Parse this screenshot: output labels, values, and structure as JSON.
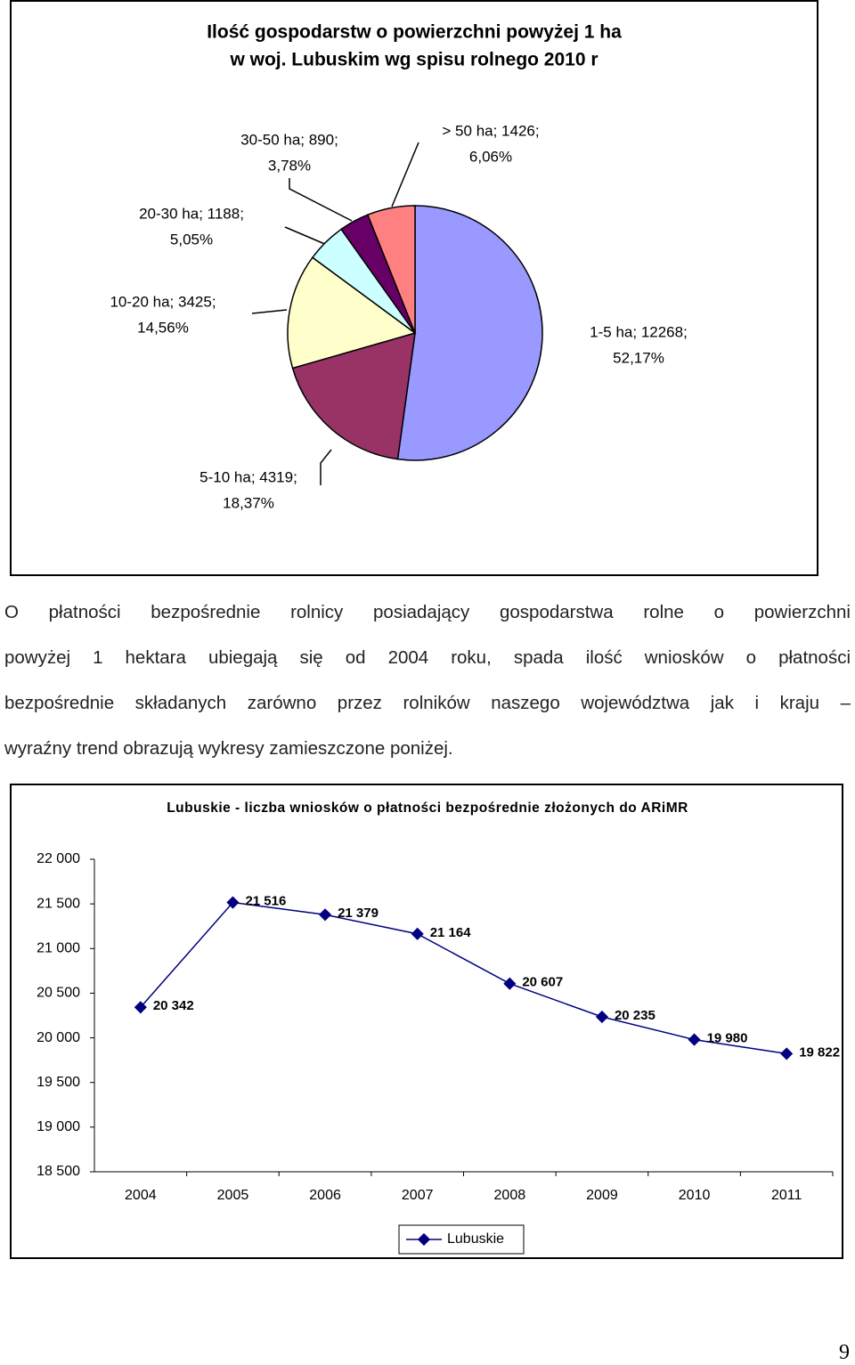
{
  "chart_data": [
    {
      "type": "pie",
      "title": [
        "Ilość gospodarstw o powierzchni powyżej 1 ha",
        "w woj. Lubuskim  wg spisu rolnego 2010 r"
      ],
      "categories": [
        "1-5 ha; 12268;",
        "5-10 ha; 4319;",
        "10-20 ha; 3425;",
        "20-30 ha; 1188;",
        "30-50 ha; 890;",
        "> 50 ha; 1426;"
      ],
      "values": [
        52.17,
        18.37,
        14.56,
        5.05,
        3.78,
        6.06
      ],
      "value_labels": [
        "52,17%",
        "18,37%",
        "14,56%",
        "5,05%",
        "3,78%",
        "6,06%"
      ],
      "colors": [
        "#9999ff",
        "#993366",
        "#ffffcc",
        "#ccffff",
        "#660066",
        "#ff8080"
      ]
    },
    {
      "type": "line",
      "title": "Lubuskie - liczba wniosków o płatności bezpośrednie złożonych do ARiMR",
      "categories": [
        "2004",
        "2005",
        "2006",
        "2007",
        "2008",
        "2009",
        "2010",
        "2011"
      ],
      "series": [
        {
          "name": "Lubuskie",
          "color": "#000080",
          "values": [
            20342,
            21516,
            21379,
            21164,
            20607,
            20235,
            19980,
            19822
          ],
          "value_labels": [
            "20 342",
            "21 516",
            "21 379",
            "21 164",
            "20 607",
            "20 235",
            "19 980",
            "19 822"
          ]
        }
      ],
      "ylim": [
        18500,
        22000
      ],
      "yticks": [
        {
          "value": 18500,
          "label": "18 500"
        },
        {
          "value": 19000,
          "label": "19 000"
        },
        {
          "value": 19500,
          "label": "19 500"
        },
        {
          "value": 20000,
          "label": "20 000"
        },
        {
          "value": 20500,
          "label": "20 500"
        },
        {
          "value": 21000,
          "label": "21 000"
        },
        {
          "value": 21500,
          "label": "21 500"
        },
        {
          "value": 22000,
          "label": "22 000"
        }
      ],
      "legend": "bottom"
    }
  ],
  "paragraph_lines": [
    "O płatności bezpośrednie rolnicy posiadający gospodarstwa rolne o powierzchni",
    "powyżej 1 hektara ubiegają się od  2004 roku, spada ilość wniosków o płatności",
    "bezpośrednie składanych zarówno przez rolników naszego województwa jak i kraju –",
    "wyraźny trend obrazują wykresy zamieszczone  poniżej."
  ],
  "page_number": "9"
}
